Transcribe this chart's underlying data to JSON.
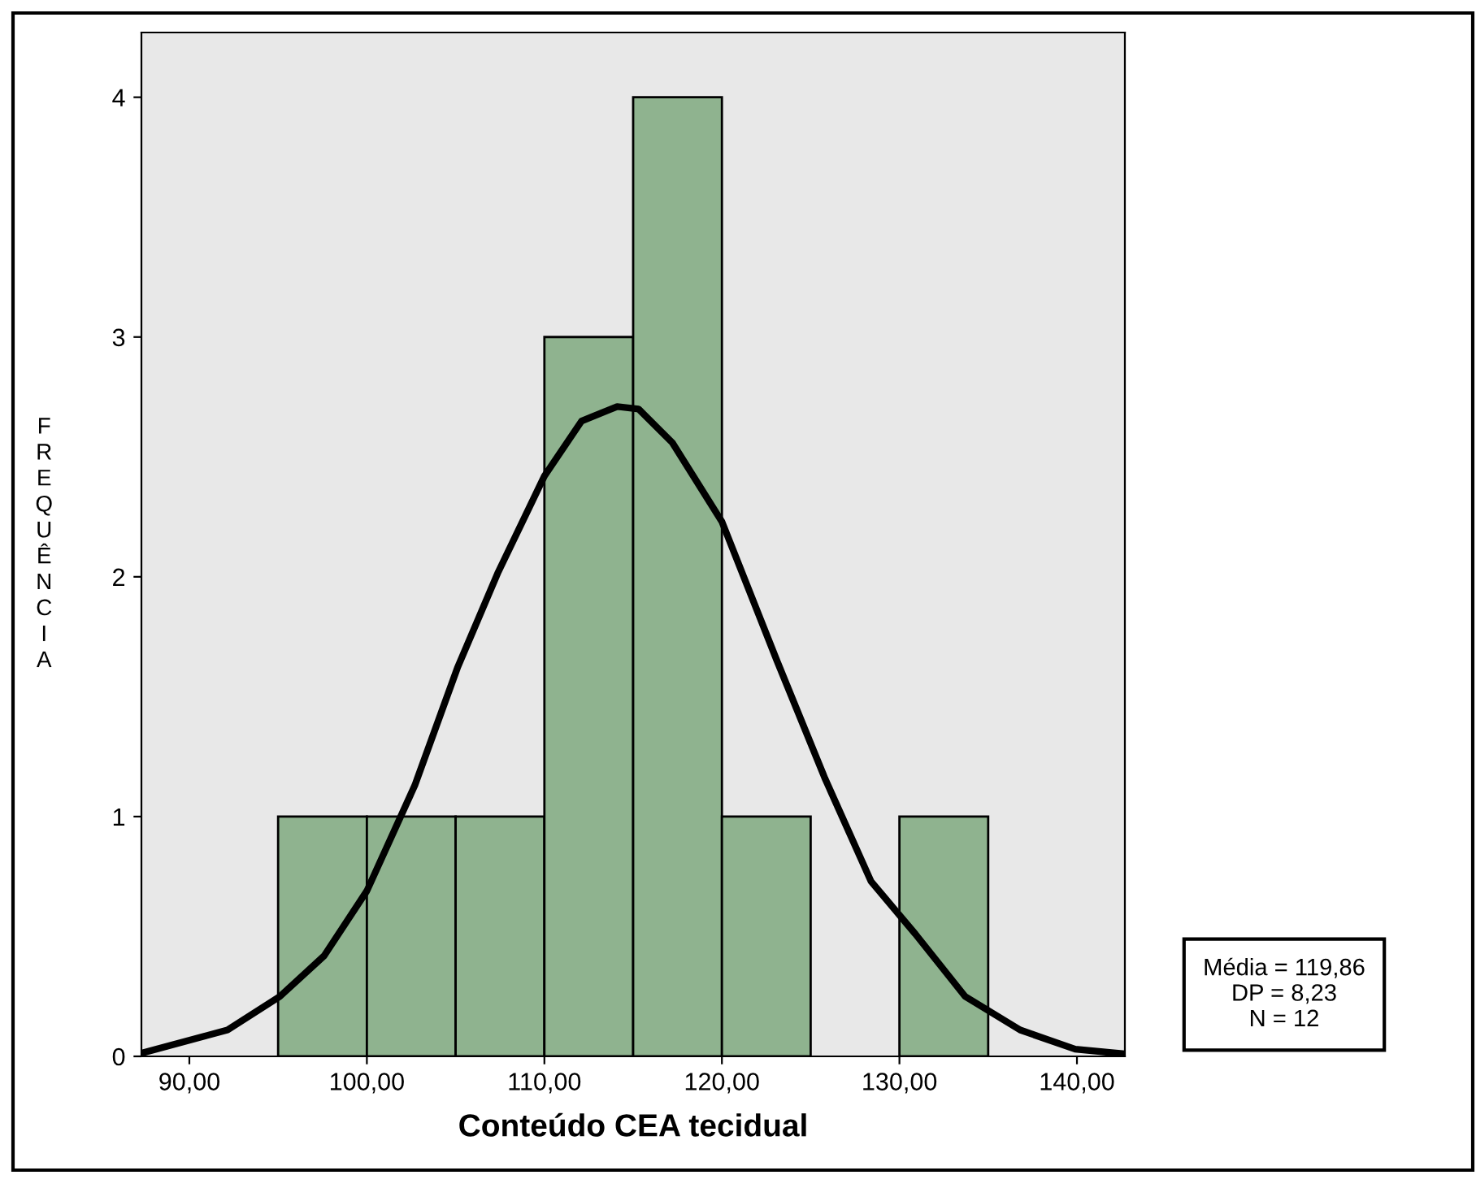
{
  "chart_data": {
    "type": "histogram",
    "xlabel": "Conteúdo CEA tecidual",
    "ylabel": "FREQUÊNCIA",
    "bins": [
      95,
      100,
      105,
      110,
      115,
      120,
      125,
      130,
      135
    ],
    "values": [
      1,
      1,
      1,
      3,
      4,
      1,
      0,
      1
    ],
    "color": "#8fb38f",
    "series": [
      {
        "type": "line",
        "color": "#000000",
        "x": [
          87.34,
          92.15,
          95.1,
          97.6,
          100.0,
          102.7,
          105.1,
          107.4,
          110.0,
          112.1,
          114.1,
          115.3,
          117.2,
          120.0,
          123.1,
          125.8,
          128.4,
          130.9,
          133.7,
          136.8,
          139.9,
          142.7
        ],
        "values": [
          0.014,
          0.11,
          0.25,
          0.42,
          0.69,
          1.13,
          1.62,
          2.02,
          2.42,
          2.65,
          2.71,
          2.7,
          2.56,
          2.23,
          1.65,
          1.16,
          0.73,
          0.51,
          0.25,
          0.11,
          0.03,
          0.01
        ]
      }
    ],
    "xlim": [
      87.3,
      142.7
    ],
    "ylim": [
      0,
      4.27
    ],
    "xticks": [
      {
        "value": 90,
        "label": "90,00"
      },
      {
        "value": 100,
        "label": "100,00"
      },
      {
        "value": 110,
        "label": "110,00"
      },
      {
        "value": 120,
        "label": "120,00"
      },
      {
        "value": 130,
        "label": "130,00"
      },
      {
        "value": 140,
        "label": "140,00"
      }
    ],
    "yticks": [
      0,
      1,
      2,
      3,
      4
    ],
    "grid": false,
    "legend": false,
    "annotations": [
      "Média = 119,86",
      "DP = 8,23",
      "N = 12"
    ]
  }
}
